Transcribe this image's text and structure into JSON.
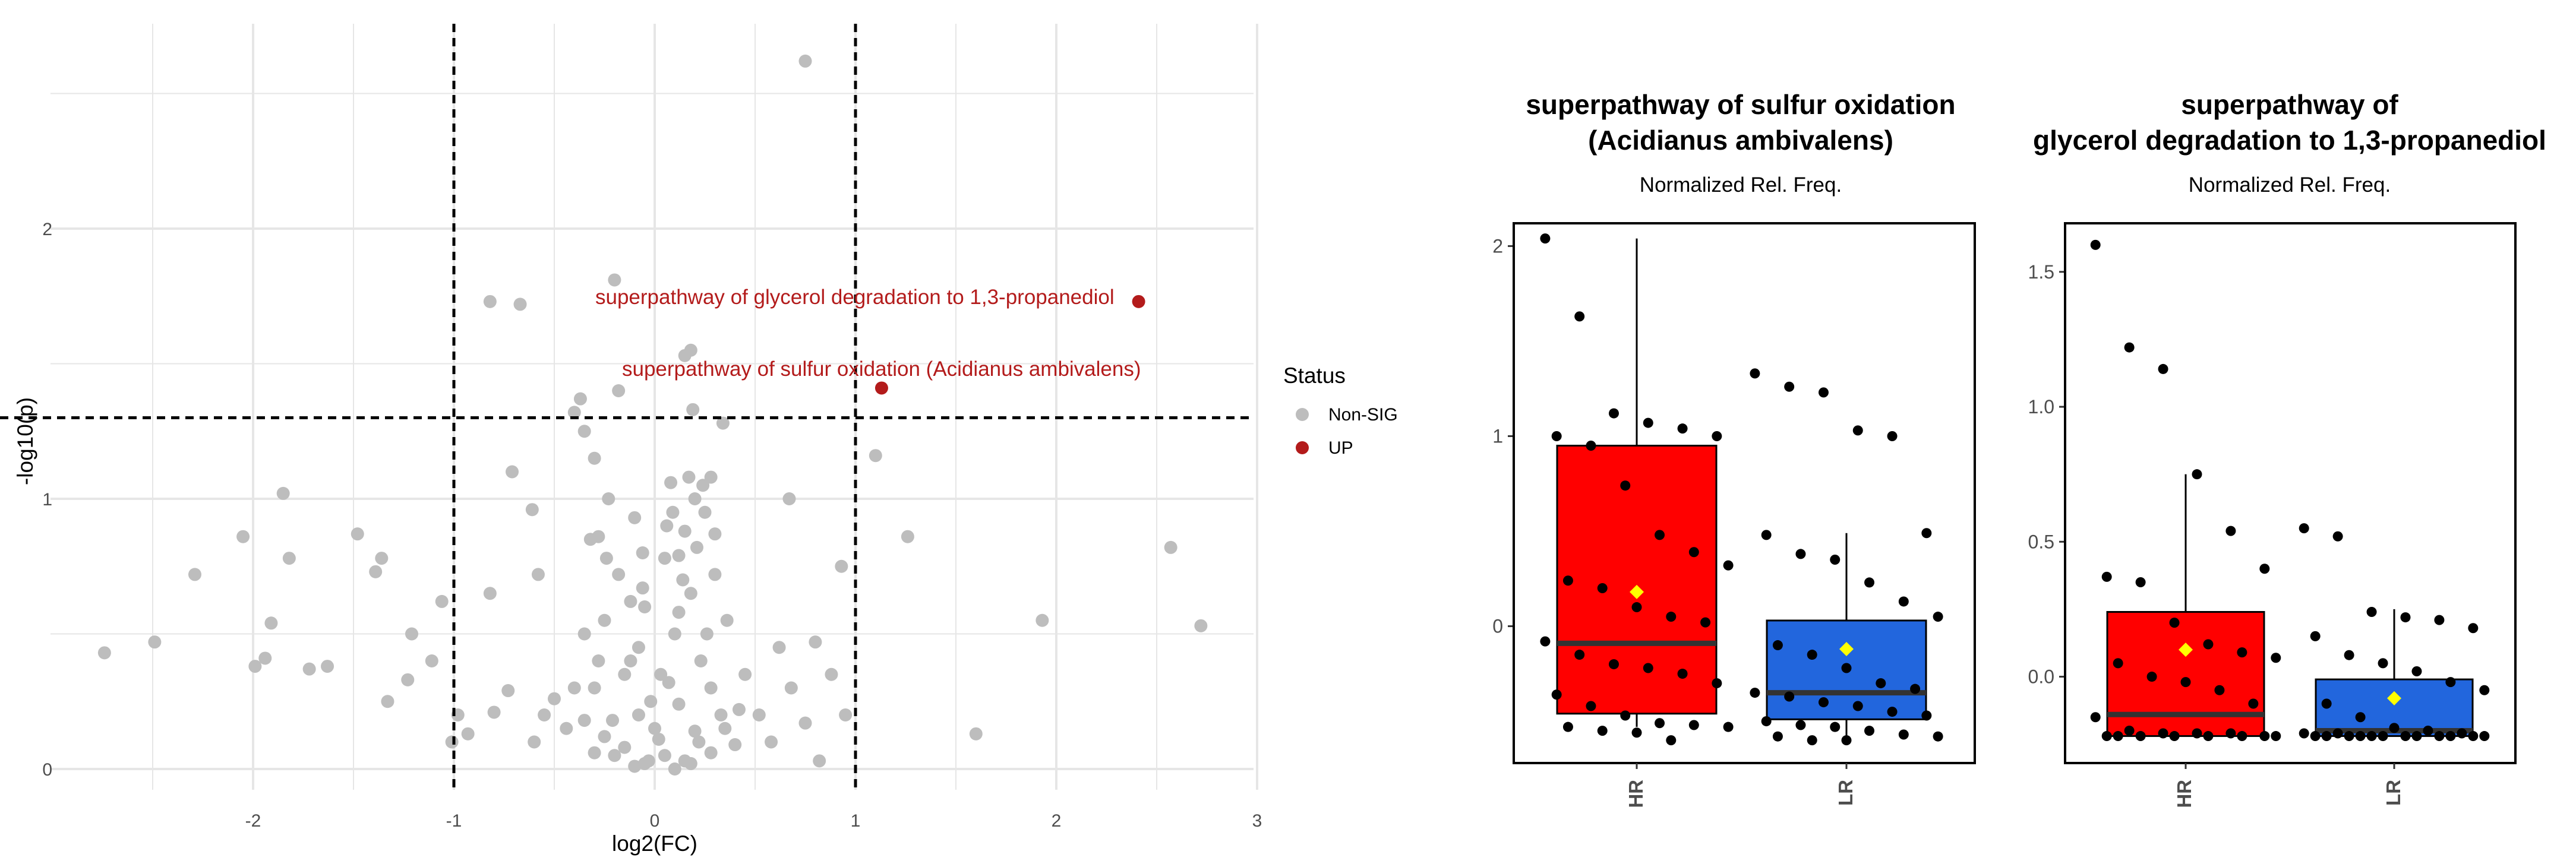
{
  "colors": {
    "nonsig": "#bdbdbd",
    "up": "#b31b1b",
    "hr_fill": "#ff0000",
    "lr_fill": "#2266dd",
    "mean": "#ffff00",
    "grid": "#e6e6e6",
    "point": "#000000"
  },
  "volcano": {
    "legend": {
      "title": "Status",
      "nonsig": "Non-SIG",
      "up": "UP"
    },
    "label_glycerol": "superpathway of glycerol degradation to 1,3-propanediol",
    "label_sulfur": "superpathway of sulfur oxidation (Acidianus ambivalens)"
  },
  "box_left": {
    "title_line1": "superpathway of sulfur oxidation",
    "title_line2": "(Acidianus ambivalens)",
    "subtitle": "Normalized Rel. Freq.",
    "groups": [
      "HR",
      "LR"
    ]
  },
  "box_right": {
    "title_line1": "superpathway of",
    "title_line2": "glycerol degradation to 1,3-propanediol",
    "subtitle": "Normalized Rel. Freq.",
    "groups": [
      "HR",
      "LR"
    ]
  },
  "chart_data": [
    {
      "type": "scatter",
      "title": "",
      "xlabel": "log2(FC)",
      "ylabel": "-log10(p)",
      "xlim": [
        -3,
        3
      ],
      "ylim": [
        -0.05,
        2.75
      ],
      "xticks": [
        -2,
        -1,
        0,
        1,
        2,
        3
      ],
      "yticks": [
        0,
        1,
        2
      ],
      "thresholds": {
        "x": [
          -1,
          1
        ],
        "y": 1.3
      },
      "series": [
        {
          "name": "Non-SIG",
          "points": [
            [
              -2.74,
              0.43
            ],
            [
              -2.49,
              0.47
            ],
            [
              -2.29,
              0.72
            ],
            [
              -2.05,
              0.86
            ],
            [
              -1.99,
              0.38
            ],
            [
              -1.94,
              0.41
            ],
            [
              -1.91,
              0.54
            ],
            [
              -1.85,
              1.02
            ],
            [
              -1.82,
              0.78
            ],
            [
              -1.72,
              0.37
            ],
            [
              -1.63,
              0.38
            ],
            [
              -1.48,
              0.87
            ],
            [
              -1.39,
              0.73
            ],
            [
              -1.36,
              0.78
            ],
            [
              -1.33,
              0.25
            ],
            [
              -1.23,
              0.33
            ],
            [
              -1.21,
              0.5
            ],
            [
              -1.11,
              0.4
            ],
            [
              -1.06,
              0.62
            ],
            [
              -1.01,
              0.1
            ],
            [
              -0.98,
              0.2
            ],
            [
              -0.93,
              0.13
            ],
            [
              -0.8,
              0.21
            ],
            [
              -0.73,
              0.29
            ],
            [
              -0.71,
              1.1
            ],
            [
              -0.61,
              0.96
            ],
            [
              -0.82,
              0.65
            ],
            [
              -0.58,
              0.72
            ],
            [
              -0.55,
              0.2
            ],
            [
              -0.5,
              0.26
            ],
            [
              -0.44,
              0.15
            ],
            [
              -0.6,
              0.1
            ],
            [
              -0.35,
              0.5
            ],
            [
              -0.32,
              0.85
            ],
            [
              -0.3,
              0.3
            ],
            [
              -0.25,
              0.55
            ],
            [
              -0.23,
              1.0
            ],
            [
              -0.21,
              0.18
            ],
            [
              -0.18,
              0.72
            ],
            [
              -0.15,
              0.08
            ],
            [
              -0.12,
              0.4
            ],
            [
              -0.1,
              0.93
            ],
            [
              -0.08,
              0.2
            ],
            [
              -0.05,
              0.6
            ],
            [
              -0.03,
              0.03
            ],
            [
              0.0,
              0.15
            ],
            [
              0.03,
              0.35
            ],
            [
              0.05,
              0.78
            ],
            [
              0.08,
              1.06
            ],
            [
              0.1,
              0.5
            ],
            [
              0.12,
              0.24
            ],
            [
              0.15,
              0.88
            ],
            [
              0.18,
              0.65
            ],
            [
              0.2,
              0.14
            ],
            [
              0.23,
              0.4
            ],
            [
              0.25,
              0.95
            ],
            [
              0.28,
              0.3
            ],
            [
              0.3,
              0.72
            ],
            [
              0.33,
              0.2
            ],
            [
              0.36,
              0.55
            ],
            [
              0.4,
              0.09
            ],
            [
              0.45,
              0.35
            ],
            [
              0.52,
              0.2
            ],
            [
              0.58,
              0.1
            ],
            [
              0.62,
              0.45
            ],
            [
              0.68,
              0.3
            ],
            [
              0.75,
              0.17
            ],
            [
              0.8,
              0.47
            ],
            [
              0.88,
              0.35
            ],
            [
              0.95,
              0.2
            ],
            [
              0.05,
              0.05
            ],
            [
              -0.05,
              0.02
            ],
            [
              0.15,
              0.03
            ],
            [
              0.1,
              0.0
            ],
            [
              -0.1,
              0.01
            ],
            [
              0.02,
              0.11
            ],
            [
              -0.02,
              0.25
            ],
            [
              0.07,
              0.32
            ],
            [
              -0.08,
              0.45
            ],
            [
              0.12,
              0.58
            ],
            [
              -0.15,
              0.35
            ],
            [
              0.18,
              0.02
            ],
            [
              -0.2,
              0.05
            ],
            [
              0.22,
              0.1
            ],
            [
              -0.25,
              0.12
            ],
            [
              -0.3,
              0.06
            ],
            [
              0.28,
              0.06
            ],
            [
              -0.35,
              0.18
            ],
            [
              0.35,
              0.15
            ],
            [
              0.42,
              0.22
            ],
            [
              -0.4,
              0.3
            ],
            [
              -0.28,
              0.4
            ],
            [
              0.26,
              0.5
            ],
            [
              -0.12,
              0.62
            ],
            [
              0.14,
              0.7
            ],
            [
              -0.06,
              0.8
            ],
            [
              0.06,
              0.9
            ],
            [
              0.2,
              1.0
            ],
            [
              0.28,
              1.08
            ],
            [
              -0.18,
              1.4
            ],
            [
              -0.4,
              1.32
            ],
            [
              -0.37,
              1.37
            ],
            [
              -0.2,
              1.81
            ],
            [
              -0.67,
              1.72
            ],
            [
              -0.82,
              1.73
            ],
            [
              0.15,
              1.53
            ],
            [
              0.18,
              1.55
            ],
            [
              0.34,
              1.28
            ],
            [
              0.19,
              1.33
            ],
            [
              -0.35,
              1.25
            ],
            [
              -0.3,
              1.15
            ],
            [
              0.75,
              2.62
            ],
            [
              1.1,
              1.16
            ],
            [
              1.26,
              0.86
            ],
            [
              0.93,
              0.75
            ],
            [
              1.93,
              0.55
            ],
            [
              2.57,
              0.82
            ],
            [
              2.72,
              0.53
            ],
            [
              1.6,
              0.13
            ],
            [
              0.82,
              0.03
            ],
            [
              0.67,
              1.0
            ],
            [
              0.3,
              0.87
            ],
            [
              0.21,
              0.82
            ],
            [
              0.12,
              0.79
            ],
            [
              0.17,
              1.08
            ],
            [
              0.24,
              1.05
            ],
            [
              0.09,
              0.95
            ],
            [
              -0.06,
              0.67
            ],
            [
              -0.24,
              0.78
            ],
            [
              -0.28,
              0.86
            ]
          ]
        },
        {
          "name": "UP",
          "points": [
            [
              2.41,
              1.73
            ],
            [
              1.13,
              1.41
            ]
          ]
        }
      ]
    },
    {
      "type": "box",
      "title": "superpathway of sulfur oxidation (Acidianus ambivalens)",
      "ylabel": "Normalized Rel. Freq.",
      "categories": [
        "HR",
        "LR"
      ],
      "ylim": [
        -0.72,
        2.12
      ],
      "yticks": [
        0,
        1,
        2
      ],
      "boxes": [
        {
          "name": "HR",
          "q1": -0.46,
          "median": -0.09,
          "q3": 0.95,
          "whisker_low": -0.53,
          "whisker_high": 2.04,
          "mean": 0.18
        },
        {
          "name": "LR",
          "q1": -0.49,
          "median": -0.35,
          "q3": 0.03,
          "whisker_low": -0.6,
          "whisker_high": 0.49,
          "mean": -0.12
        }
      ],
      "points": {
        "HR": [
          2.04,
          1.63,
          1.12,
          1.07,
          1.04,
          1.0,
          1.0,
          0.95,
          0.74,
          0.48,
          0.39,
          0.32,
          0.24,
          0.2,
          0.1,
          0.05,
          0.02,
          -0.08,
          -0.15,
          -0.2,
          -0.22,
          -0.25,
          -0.3,
          -0.36,
          -0.42,
          -0.47,
          -0.51,
          -0.52,
          -0.53,
          -0.53,
          -0.55,
          -0.56,
          -0.6
        ],
        "LR": [
          1.33,
          1.26,
          1.23,
          1.03,
          1.0,
          0.49,
          0.48,
          0.38,
          0.35,
          0.23,
          0.13,
          0.05,
          -0.1,
          -0.15,
          -0.22,
          -0.3,
          -0.33,
          -0.35,
          -0.37,
          -0.4,
          -0.42,
          -0.45,
          -0.47,
          -0.5,
          -0.52,
          -0.53,
          -0.55,
          -0.57,
          -0.58,
          -0.58,
          -0.6,
          -0.6
        ]
      }
    },
    {
      "type": "box",
      "title": "superpathway of glycerol degradation to 1,3-propanediol",
      "ylabel": "Normalized Rel. Freq.",
      "categories": [
        "HR",
        "LR"
      ],
      "ylim": [
        -0.32,
        1.68
      ],
      "yticks": [
        0.0,
        0.5,
        1.0,
        1.5
      ],
      "ytick_labels": [
        "0.0",
        "0.5",
        "1.0",
        "1.5"
      ],
      "boxes": [
        {
          "name": "HR",
          "q1": -0.22,
          "median": -0.14,
          "q3": 0.24,
          "whisker_low": -0.22,
          "whisker_high": 0.75,
          "mean": 0.1
        },
        {
          "name": "LR",
          "q1": -0.22,
          "median": -0.2,
          "q3": -0.01,
          "whisker_low": -0.22,
          "whisker_high": 0.25,
          "mean": -0.08
        }
      ],
      "points": {
        "HR": [
          1.6,
          1.22,
          1.14,
          0.75,
          0.54,
          0.4,
          0.37,
          0.35,
          0.2,
          0.12,
          0.09,
          0.07,
          0.05,
          0.0,
          -0.02,
          -0.05,
          -0.1,
          -0.15,
          -0.2,
          -0.21,
          -0.21,
          -0.21,
          -0.22,
          -0.22,
          -0.22,
          -0.22,
          -0.22,
          -0.22,
          -0.22,
          -0.22
        ],
        "LR": [
          0.55,
          0.52,
          0.24,
          0.22,
          0.21,
          0.18,
          0.15,
          0.08,
          0.05,
          0.02,
          -0.02,
          -0.05,
          -0.1,
          -0.15,
          -0.19,
          -0.2,
          -0.21,
          -0.21,
          -0.21,
          -0.22,
          -0.22,
          -0.22,
          -0.22,
          -0.22,
          -0.22,
          -0.22,
          -0.22,
          -0.22,
          -0.22,
          -0.22,
          -0.22
        ]
      }
    }
  ]
}
